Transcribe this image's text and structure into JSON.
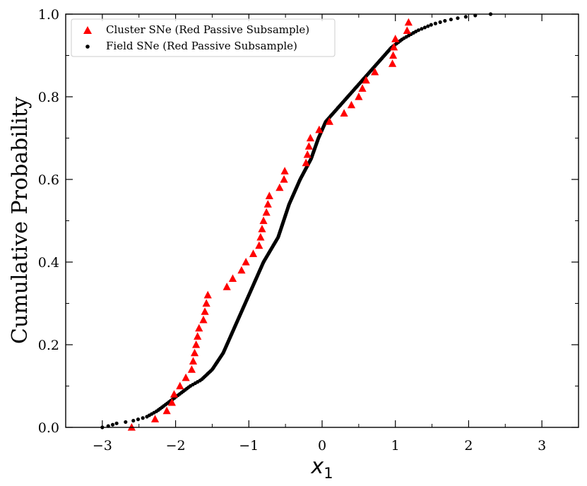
{
  "chart_data": {
    "type": "scatter",
    "title": "",
    "xlabel": "x",
    "xlabel_subscript": "1",
    "ylabel": "Cumulative Probability",
    "xlim": [
      -3.5,
      3.5
    ],
    "ylim": [
      0.0,
      1.0
    ],
    "x_ticks": [
      -3,
      -2,
      -1,
      0,
      1,
      2,
      3
    ],
    "x_tick_labels": [
      "−3",
      "−2",
      "−1",
      "0",
      "1",
      "2",
      "3"
    ],
    "y_ticks": [
      0.0,
      0.2,
      0.4,
      0.6,
      0.8,
      1.0
    ],
    "y_tick_labels": [
      "0.0",
      "0.2",
      "0.4",
      "0.6",
      "0.8",
      "1.0"
    ],
    "grid": false,
    "legend_position": "top-left",
    "series": [
      {
        "name": "Cluster SNe (Red Passive Subsample)",
        "marker": "triangle",
        "color": "#ff0000",
        "x": [
          -2.6,
          -2.28,
          -2.12,
          -2.05,
          -2.02,
          -1.94,
          -1.86,
          -1.78,
          -1.76,
          -1.74,
          -1.72,
          -1.7,
          -1.68,
          -1.62,
          -1.6,
          -1.58,
          -1.56,
          -1.3,
          -1.22,
          -1.1,
          -1.04,
          -0.94,
          -0.86,
          -0.84,
          -0.82,
          -0.8,
          -0.76,
          -0.74,
          -0.72,
          -0.58,
          -0.52,
          -0.51,
          -0.22,
          -0.2,
          -0.18,
          -0.16,
          -0.04,
          0.1,
          0.3,
          0.4,
          0.5,
          0.55,
          0.6,
          0.72,
          0.96,
          0.97,
          0.98,
          1.0,
          1.16,
          1.18
        ],
        "y": [
          0.0,
          0.02,
          0.04,
          0.06,
          0.08,
          0.1,
          0.12,
          0.14,
          0.16,
          0.18,
          0.2,
          0.22,
          0.24,
          0.26,
          0.28,
          0.3,
          0.32,
          0.34,
          0.36,
          0.38,
          0.4,
          0.42,
          0.44,
          0.46,
          0.48,
          0.5,
          0.52,
          0.54,
          0.56,
          0.58,
          0.6,
          0.62,
          0.64,
          0.66,
          0.68,
          0.7,
          0.72,
          0.74,
          0.76,
          0.78,
          0.8,
          0.82,
          0.84,
          0.86,
          0.88,
          0.9,
          0.92,
          0.94,
          0.96,
          0.98
        ]
      },
      {
        "name": "Field SNe (Red Passive Subsample)",
        "marker": "dot",
        "color": "#000000",
        "curve_x": [
          -3.0,
          -2.9,
          -2.8,
          -2.6,
          -2.4,
          -2.25,
          -2.1,
          -1.95,
          -1.8,
          -1.65,
          -1.5,
          -1.35,
          -1.2,
          -1.0,
          -0.8,
          -0.6,
          -0.45,
          -0.3,
          -0.15,
          -0.05,
          0.05,
          0.2,
          0.35,
          0.5,
          0.65,
          0.8,
          0.95,
          1.1,
          1.3,
          1.5,
          1.7,
          1.9,
          2.1,
          2.3
        ],
        "curve_y": [
          0.0,
          0.004,
          0.01,
          0.015,
          0.025,
          0.04,
          0.06,
          0.08,
          0.1,
          0.115,
          0.14,
          0.18,
          0.24,
          0.32,
          0.4,
          0.46,
          0.54,
          0.6,
          0.65,
          0.7,
          0.74,
          0.77,
          0.8,
          0.83,
          0.86,
          0.89,
          0.92,
          0.94,
          0.96,
          0.975,
          0.985,
          0.992,
          0.997,
          1.0
        ],
        "n_points": 310
      }
    ]
  }
}
